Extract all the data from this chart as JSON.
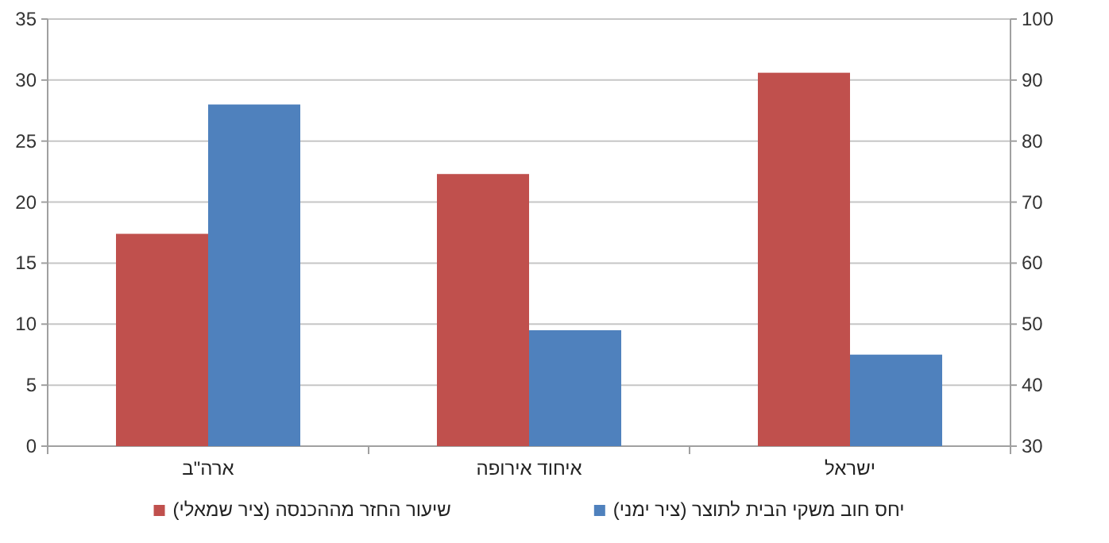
{
  "chart_data": {
    "type": "bar",
    "categories": [
      "ארה\"ב",
      "איחוד אירופה",
      "ישראל"
    ],
    "series": [
      {
        "name": "שיעור החזר מההכנסה (ציר שמאלי)",
        "color": "#c0504d",
        "values": [
          17.4,
          22.3,
          30.6
        ]
      },
      {
        "name": "יחס חוב משקי הבית לתוצר (ציר ימני)",
        "color": "#4f81bd",
        "values": [
          86,
          49,
          45
        ],
        "axis": "y2"
      }
    ],
    "ylim": [
      0,
      35
    ],
    "yticks": [
      0,
      5,
      10,
      15,
      20,
      25,
      30,
      35
    ],
    "y2lim": [
      30,
      100
    ],
    "y2ticks": [
      30,
      40,
      50,
      60,
      70,
      80,
      90,
      100
    ],
    "grid": "y",
    "legend": "bottom"
  }
}
